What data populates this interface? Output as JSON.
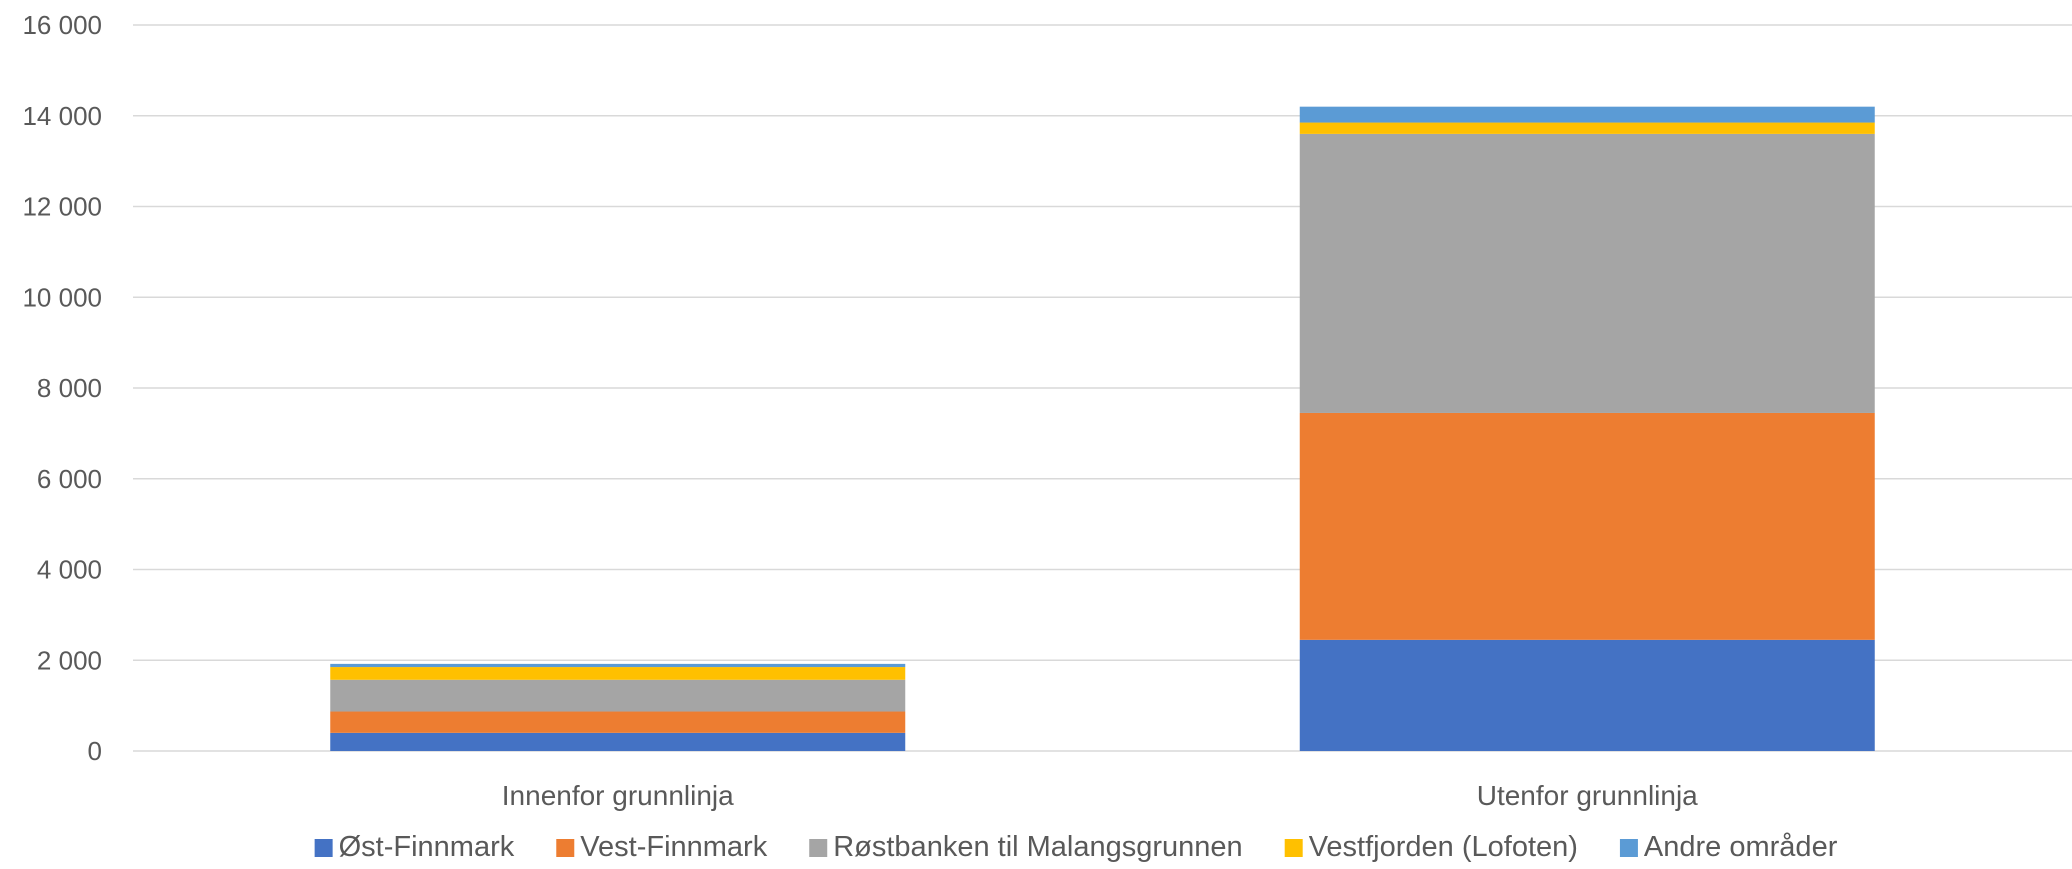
{
  "chart_data": {
    "type": "bar",
    "stacked": true,
    "title": "",
    "xlabel": "",
    "ylabel": "",
    "ylim": [
      0,
      16000
    ],
    "yticks": [
      {
        "value": 0,
        "label": "0"
      },
      {
        "value": 2000,
        "label": "2 000"
      },
      {
        "value": 4000,
        "label": "4 000"
      },
      {
        "value": 6000,
        "label": "6 000"
      },
      {
        "value": 8000,
        "label": "8 000"
      },
      {
        "value": 10000,
        "label": "10 000"
      },
      {
        "value": 12000,
        "label": "12 000"
      },
      {
        "value": 14000,
        "label": "14 000"
      },
      {
        "value": 16000,
        "label": "16 000"
      }
    ],
    "grid": true,
    "legend_position": "bottom",
    "categories": [
      "Innenfor grunnlinja",
      "Utenfor grunnlinja"
    ],
    "series": [
      {
        "name": "Øst-Finnmark",
        "color": "#4472C4",
        "values": [
          400,
          2450
        ]
      },
      {
        "name": "Vest-Finnmark",
        "color": "#ED7D31",
        "values": [
          470,
          5000
        ]
      },
      {
        "name": "Røstbanken til Malangsgrunnen",
        "color": "#A5A5A5",
        "values": [
          700,
          6150
        ]
      },
      {
        "name": "Vestfjorden (Lofoten)",
        "color": "#FFC000",
        "values": [
          280,
          250
        ]
      },
      {
        "name": "Andre områder",
        "color": "#5B9BD5",
        "values": [
          70,
          350
        ]
      }
    ]
  }
}
